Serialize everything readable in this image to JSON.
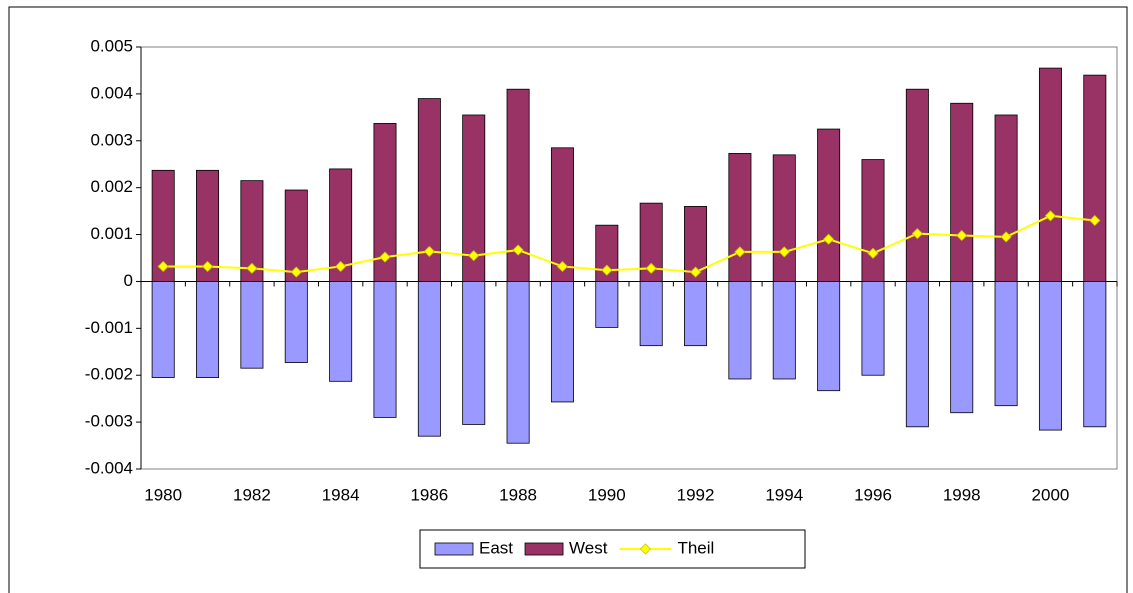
{
  "chart_data": {
    "type": "bar",
    "categories": [
      "1980",
      null,
      "1982",
      null,
      "1984",
      null,
      "1986",
      null,
      "1988",
      null,
      "1990",
      null,
      "1992",
      null,
      "1994",
      null,
      "1996",
      null,
      "1998",
      null,
      "2000",
      null
    ],
    "series": [
      {
        "name": "East",
        "type": "bar",
        "color": "#9999ff",
        "values": [
          -0.00205,
          -0.00205,
          -0.00185,
          -0.00173,
          -0.00213,
          -0.0029,
          -0.0033,
          -0.00305,
          -0.00345,
          -0.00257,
          -0.00098,
          -0.00137,
          -0.00137,
          -0.00208,
          -0.00208,
          -0.00233,
          -0.002,
          -0.0031,
          -0.0028,
          -0.00265,
          -0.00317,
          -0.0031
        ]
      },
      {
        "name": "West",
        "type": "bar",
        "color": "#993366",
        "values": [
          0.00237,
          0.00237,
          0.00215,
          0.00195,
          0.0024,
          0.00337,
          0.0039,
          0.00355,
          0.0041,
          0.00285,
          0.0012,
          0.00167,
          0.0016,
          0.00273,
          0.0027,
          0.00325,
          0.0026,
          0.0041,
          0.0038,
          0.00355,
          0.00455,
          0.0044
        ]
      },
      {
        "name": "Theil",
        "type": "line",
        "color": "#ffff00",
        "values": [
          0.00032,
          0.00032,
          0.00028,
          0.0002,
          0.00032,
          0.00052,
          0.00064,
          0.00055,
          0.00067,
          0.00032,
          0.00024,
          0.00028,
          0.0002,
          0.00063,
          0.00063,
          0.0009,
          0.0006,
          0.00102,
          0.00098,
          0.00095,
          0.0014,
          0.0013
        ]
      }
    ],
    "ylim": [
      -0.004,
      0.005
    ],
    "yticks": [
      -0.004,
      -0.003,
      -0.002,
      -0.001,
      0,
      0.001,
      0.002,
      0.003,
      0.004,
      0.005
    ],
    "grid": false,
    "legend": "bottom"
  }
}
